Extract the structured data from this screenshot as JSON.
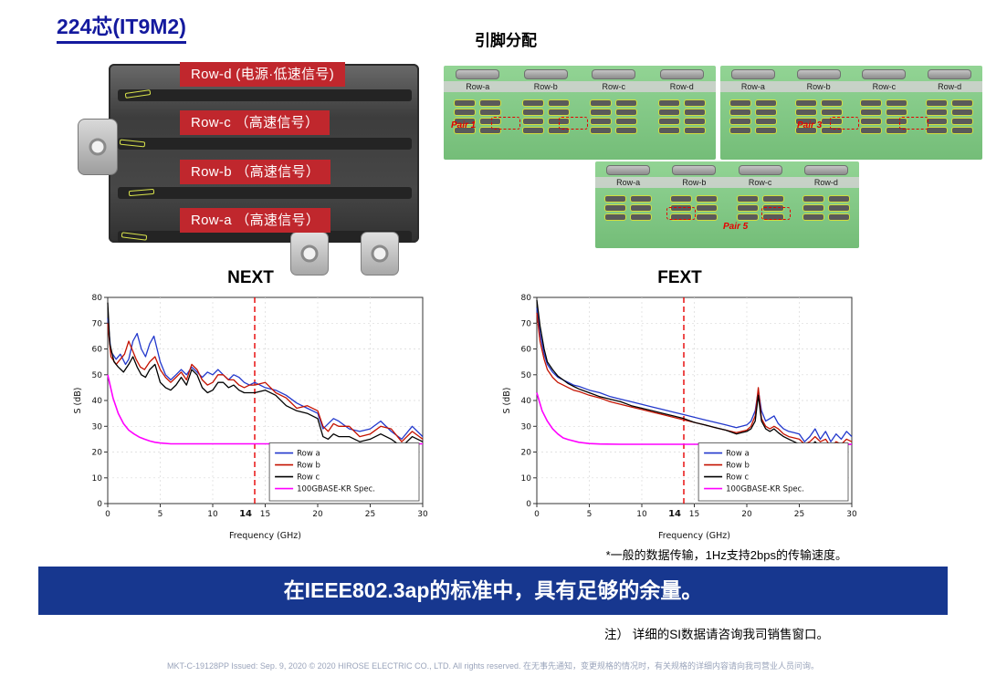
{
  "title": "224芯(IT9M2)",
  "connector": {
    "row_labels": [
      {
        "label": "Row-d (电源·低速信号)"
      },
      {
        "label": "Row-c （高速信号）"
      },
      {
        "label": "Row-b （高速信号）"
      },
      {
        "label": "Row-a （高速信号）"
      }
    ]
  },
  "pin_assignment": {
    "heading": "引脚分配",
    "panels": [
      {
        "columns": [
          "Row-a",
          "Row-b",
          "Row-c",
          "Row-d"
        ],
        "pair_label": "Pair 1"
      },
      {
        "columns": [
          "Row-a",
          "Row-b",
          "Row-c",
          "Row-d"
        ],
        "pair_label": "Pair 3"
      },
      {
        "columns": [
          "Row-a",
          "Row-b",
          "Row-c",
          "Row-d"
        ],
        "pair_label": "Pair 5"
      }
    ]
  },
  "chart_data": [
    {
      "type": "line",
      "title": "NEXT",
      "xlabel": "Frequency (GHz)",
      "ylabel": "S (dB)",
      "xlim": [
        0,
        30
      ],
      "ylim": [
        0,
        80
      ],
      "xticks": [
        0,
        5,
        10,
        15,
        20,
        25,
        30
      ],
      "yticks": [
        0,
        10,
        20,
        30,
        40,
        50,
        60,
        70,
        80
      ],
      "grid": true,
      "legend_position": "lower right",
      "ref_line": {
        "x": 14,
        "label": "14",
        "color": "#e60000",
        "style": "dashed"
      },
      "series": [
        {
          "name": "Row a",
          "color": "#2238cc",
          "width": 1.3,
          "x": [
            0,
            0.3,
            0.8,
            1.2,
            1.7,
            2,
            2.4,
            2.8,
            3.2,
            3.6,
            4,
            4.4,
            5,
            5.5,
            6,
            6.5,
            7,
            7.5,
            8,
            8.5,
            9,
            9.5,
            10,
            10.5,
            11,
            11.5,
            12,
            12.5,
            13,
            13.5,
            14,
            15,
            16,
            17,
            18,
            19,
            20,
            20.5,
            21,
            21.5,
            22,
            23,
            24,
            25,
            26,
            27,
            28,
            29,
            30
          ],
          "y": [
            72,
            59,
            56,
            58,
            54,
            56,
            63,
            66,
            60,
            57,
            62,
            65,
            55,
            50,
            48,
            50,
            52,
            50,
            53,
            51,
            49,
            51,
            50,
            52,
            50,
            48,
            50,
            49,
            47,
            46,
            47,
            45,
            44,
            42,
            39,
            37,
            35,
            29,
            31,
            33,
            32,
            29,
            28,
            29,
            32,
            28,
            25,
            30,
            26
          ]
        },
        {
          "name": "Row b",
          "color": "#c41200",
          "width": 1.3,
          "x": [
            0,
            0.3,
            0.8,
            1.2,
            1.6,
            2,
            2.3,
            2.7,
            3.1,
            3.5,
            4,
            4.5,
            5,
            5.5,
            6,
            6.5,
            7,
            7.5,
            8,
            8.5,
            9,
            9.5,
            10,
            10.5,
            11,
            11.5,
            12,
            12.5,
            13,
            13.5,
            14,
            15,
            16,
            17,
            18,
            19,
            20,
            20.5,
            21,
            21.5,
            22,
            23,
            24,
            25,
            26,
            27,
            28,
            29,
            30
          ],
          "y": [
            70,
            57,
            54,
            56,
            58,
            63,
            60,
            56,
            53,
            52,
            55,
            57,
            52,
            49,
            47,
            49,
            51,
            48,
            54,
            52,
            48,
            46,
            47,
            50,
            50,
            48,
            48,
            46,
            45,
            46,
            46,
            47,
            43,
            41,
            37,
            38,
            36,
            30,
            28,
            31,
            30,
            30,
            26,
            27,
            30,
            29,
            24,
            28,
            25
          ]
        },
        {
          "name": "Row c",
          "color": "#000000",
          "width": 1.3,
          "x": [
            0,
            0.2,
            0.6,
            1,
            1.5,
            2,
            2.4,
            2.8,
            3.2,
            3.6,
            4,
            4.5,
            5,
            5.5,
            6,
            6.5,
            7,
            7.5,
            8,
            8.5,
            9,
            9.5,
            10,
            10.5,
            11,
            11.5,
            12,
            12.5,
            13,
            13.5,
            14,
            15,
            16,
            17,
            18,
            19,
            20,
            20.5,
            21,
            21.5,
            22,
            23,
            24,
            25,
            26,
            27,
            28,
            29,
            30
          ],
          "y": [
            78,
            62,
            55,
            53,
            51,
            54,
            57,
            53,
            50,
            49,
            52,
            54,
            47,
            45,
            44,
            46,
            49,
            46,
            52,
            50,
            45,
            43,
            44,
            47,
            47,
            45,
            46,
            44,
            43,
            43,
            43,
            44,
            42,
            38,
            36,
            35,
            33,
            26,
            25,
            27,
            26,
            26,
            24,
            25,
            27,
            25,
            22,
            26,
            24
          ]
        },
        {
          "name": "100GBASE-KR Spec.",
          "color": "#ff00ff",
          "width": 1.6,
          "x": [
            0,
            0.5,
            1,
            1.5,
            2,
            2.5,
            3,
            3.5,
            4,
            4.5,
            5,
            6,
            8,
            10,
            15,
            20,
            25,
            30
          ],
          "y": [
            50,
            41,
            35,
            31,
            28.5,
            27,
            25.8,
            25,
            24.3,
            23.8,
            23.5,
            23.2,
            23.2,
            23.2,
            23.2,
            23.2,
            23.2,
            23.2
          ]
        }
      ]
    },
    {
      "type": "line",
      "title": "FEXT",
      "xlabel": "Frequency (GHz)",
      "ylabel": "S (dB)",
      "xlim": [
        0,
        30
      ],
      "ylim": [
        0,
        80
      ],
      "xticks": [
        0,
        5,
        10,
        15,
        20,
        25,
        30
      ],
      "yticks": [
        0,
        10,
        20,
        30,
        40,
        50,
        60,
        70,
        80
      ],
      "grid": true,
      "legend_position": "lower right",
      "ref_line": {
        "x": 14,
        "label": "14",
        "color": "#e60000",
        "style": "dashed"
      },
      "series": [
        {
          "name": "Row a",
          "color": "#2238cc",
          "width": 1.3,
          "x": [
            0,
            0.3,
            0.7,
            1,
            1.5,
            2,
            2.5,
            3,
            3.5,
            4,
            5,
            6,
            7,
            8,
            9,
            10,
            11,
            12,
            13,
            14,
            15,
            16,
            17,
            18,
            19,
            19.5,
            20,
            20.4,
            20.8,
            21.1,
            21.4,
            21.8,
            22.2,
            22.6,
            23,
            23.5,
            24,
            24.5,
            25,
            25.5,
            26,
            26.5,
            27,
            27.5,
            28,
            28.5,
            29,
            29.5,
            30
          ],
          "y": [
            76,
            66,
            58,
            54,
            51,
            49,
            48,
            47,
            46,
            45.5,
            44,
            43,
            41.5,
            40.5,
            39.5,
            38.5,
            37.5,
            36.5,
            35.5,
            34.5,
            33.5,
            32.5,
            31.5,
            30.5,
            29.5,
            30,
            30.5,
            32,
            36,
            44,
            36,
            32,
            33,
            34,
            31,
            29,
            28,
            27.5,
            27,
            24,
            26,
            29,
            25,
            28,
            24,
            27,
            25,
            28,
            26
          ]
        },
        {
          "name": "Row b",
          "color": "#c41200",
          "width": 1.3,
          "x": [
            0,
            0.3,
            0.7,
            1,
            1.5,
            2,
            2.5,
            3,
            3.5,
            4,
            5,
            6,
            7,
            8,
            9,
            10,
            11,
            12,
            13,
            14,
            15,
            16,
            17,
            18,
            19,
            19.5,
            20,
            20.4,
            20.8,
            21.1,
            21.4,
            21.8,
            22.2,
            22.6,
            23,
            23.5,
            24,
            24.5,
            25,
            25.5,
            26,
            26.5,
            27,
            27.5,
            28,
            28.5,
            29,
            29.5,
            30
          ],
          "y": [
            74,
            63,
            56,
            52,
            49,
            47,
            46,
            45,
            44,
            43.5,
            42,
            41,
            39.5,
            38.5,
            37.5,
            36.5,
            35.5,
            34.5,
            33.5,
            32.5,
            31.5,
            30.5,
            29.5,
            28.5,
            27.5,
            28,
            28.5,
            30,
            34,
            45,
            33,
            30,
            29,
            30,
            29,
            27,
            26,
            25.5,
            25,
            23,
            24,
            26,
            24,
            25,
            22,
            24,
            23,
            25,
            24
          ]
        },
        {
          "name": "Row c",
          "color": "#000000",
          "width": 1.3,
          "x": [
            0,
            0.3,
            0.7,
            1,
            1.5,
            2,
            2.5,
            3,
            3.5,
            4,
            5,
            6,
            7,
            8,
            9,
            10,
            11,
            12,
            13,
            14,
            15,
            16,
            17,
            18,
            19,
            19.5,
            20,
            20.4,
            20.8,
            21.1,
            21.4,
            21.8,
            22.2,
            22.6,
            23,
            23.5,
            24,
            24.5,
            25,
            25.5,
            26,
            26.5,
            27,
            27.5,
            28,
            28.5,
            29,
            29.5,
            30
          ],
          "y": [
            79,
            69,
            60,
            55,
            52,
            49.5,
            48,
            46.5,
            45.5,
            44.5,
            43,
            41.5,
            40.5,
            39.5,
            38,
            37,
            36,
            35,
            34,
            33,
            31.5,
            30.5,
            29.5,
            28.5,
            27,
            27.5,
            28,
            29,
            32,
            42,
            32,
            29,
            28,
            29,
            27.5,
            26,
            25,
            24,
            23,
            21.5,
            22,
            24,
            22,
            23,
            21,
            22,
            21.5,
            23,
            23
          ]
        },
        {
          "name": "100GBASE-KR Spec.",
          "color": "#ff00ff",
          "width": 1.6,
          "x": [
            0,
            0.5,
            1,
            1.5,
            2,
            2.5,
            3,
            4,
            5,
            6,
            8,
            10,
            15,
            20,
            25,
            30
          ],
          "y": [
            43,
            36,
            32,
            29,
            27,
            25.5,
            24.8,
            23.8,
            23.3,
            23.1,
            23,
            23,
            23,
            23,
            23,
            23
          ]
        }
      ]
    }
  ],
  "footnote": "*一般的数据传输，1Hz支持2bps的传输速度。",
  "banner": "在IEEE802.3ap的标准中，具有足够的余量。",
  "note": "注） 详细的SI数据请咨询我司销售窗口。",
  "footer": "MKT-C-19128PP   Issued: Sep. 9, 2020   © 2020 HIROSE ELECTRIC CO., LTD. All rights reserved. 在无事先通知，变更规格的情况时，有关规格的详细内容请向我司营业人员问询。"
}
